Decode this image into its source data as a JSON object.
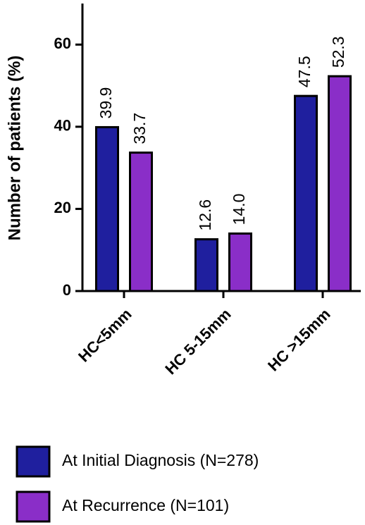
{
  "chart_data": {
    "type": "bar",
    "y_label": "Number of patients (%)",
    "categories": [
      "HC<5mm",
      "HC 5-15mm",
      "HC >15mm"
    ],
    "series": [
      {
        "name": "At Initial Diagnosis (N=278)",
        "color": "#1f1f9e",
        "values": [
          39.9,
          12.6,
          47.5
        ],
        "value_labels": [
          "39.9",
          "12.6",
          "47.5"
        ]
      },
      {
        "name": "At Recurrence (N=101)",
        "color": "#8a2ec8",
        "values": [
          33.7,
          14.0,
          52.3
        ],
        "value_labels": [
          "33.7",
          "14.0",
          "52.3"
        ]
      }
    ],
    "ylim": [
      0,
      70
    ],
    "yticks": [
      0,
      20,
      40,
      60
    ]
  }
}
